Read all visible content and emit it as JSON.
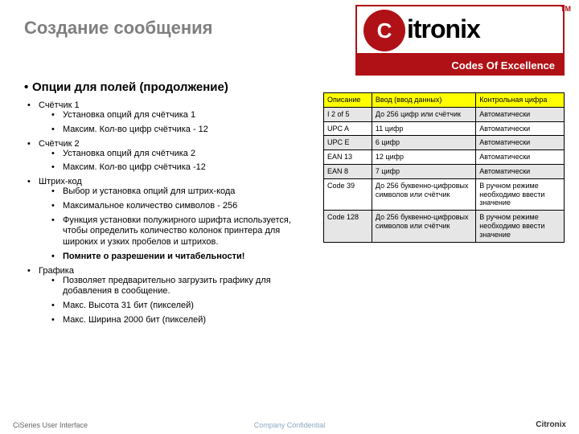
{
  "title": "Создание сообщения",
  "logo": {
    "brand_prefix": "C",
    "brand_rest": "itronix",
    "tm": "TM",
    "tagline": "Codes Of Excellence"
  },
  "heading": "Опции для полей (продолжение)",
  "bullets": {
    "counter1": "Счётчик 1",
    "counter1_items": [
      "Установка опций для счётчика 1",
      "Максим. Кол-во цифр счётчика - 12"
    ],
    "counter2": "Счётчик 2",
    "counter2_items": [
      "Установка опций для счётчика 2",
      "Максим. Кол-во цифр счётчика -12"
    ],
    "barcode": "Штрих-код",
    "barcode_items": [
      "Выбор и установка опций для штрих-кода",
      "Максимальное количество символов - 256",
      "Функция установки полужирного шрифта используется, чтобы определить количество колонок принтера для широких и узких пробелов и штрихов.",
      "Помните о разрешении и читабельности!"
    ],
    "graphics": "Графика",
    "graphics_items": [
      "Позволяет предварительно загрузить графику для добавления в сообщение.",
      "Макс. Высота 31 бит (пикселей)",
      "Макс. Ширина  2000 бит (пикселей)"
    ]
  },
  "table": {
    "headers": [
      "Описание",
      "Ввод  (ввод данных)",
      "Контрольная цифра"
    ],
    "rows": [
      {
        "shaded": true,
        "cells": [
          "I 2 of 5",
          "До 256 цифр или счётчик",
          "Автоматически"
        ]
      },
      {
        "shaded": false,
        "cells": [
          "UPC A",
          "11 цифр",
          "Автоматически"
        ]
      },
      {
        "shaded": true,
        "cells": [
          "UPC E",
          "6 цифр",
          "Автоматически"
        ]
      },
      {
        "shaded": false,
        "cells": [
          "EAN 13",
          "12 цифр",
          "Автоматически"
        ]
      },
      {
        "shaded": true,
        "cells": [
          "EAN 8",
          "7 цифр",
          "Автоматически"
        ]
      },
      {
        "shaded": false,
        "cells": [
          "Code 39",
          "До 256 буквенно-цифровых символов или счётчик",
          "В ручном режиме необходимо ввести значение"
        ]
      },
      {
        "shaded": true,
        "cells": [
          "Code 128",
          "До 256 буквенно-цифровых символов или счётчик",
          "В ручном режиме необходимо ввести значение"
        ]
      }
    ]
  },
  "colors": {
    "header_bg": "#ffff00",
    "shaded_bg": "#e6e6e6",
    "brand_red": "#b01116",
    "title_gray": "#7f7f7f"
  },
  "footer": {
    "left": "CiSeries User Interface",
    "center": "Company Confidential",
    "right": "Citronix"
  }
}
